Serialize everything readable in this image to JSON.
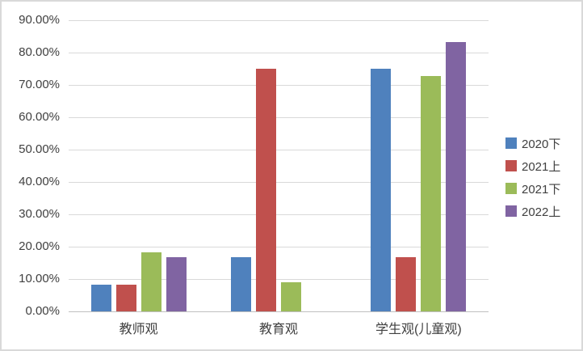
{
  "chart_data": {
    "type": "bar",
    "title": "",
    "xlabel": "",
    "ylabel": "",
    "categories": [
      "教师观",
      "教育观",
      "学生观(儿童观)"
    ],
    "series": [
      {
        "name": "2020下",
        "color": "#4F81BD",
        "values": [
          8.33,
          16.67,
          75.0
        ]
      },
      {
        "name": "2021上",
        "color": "#C0504D",
        "values": [
          8.33,
          75.0,
          16.67
        ]
      },
      {
        "name": "2021下",
        "color": "#9BBB59",
        "values": [
          18.18,
          9.09,
          72.73
        ]
      },
      {
        "name": "2022上",
        "color": "#8064A2",
        "values": [
          16.67,
          0.0,
          83.33
        ]
      }
    ],
    "ylim": [
      0,
      90
    ],
    "ytick_step": 10,
    "y_tick_labels_topdown": [
      "90.00%",
      "80.00%",
      "70.00%",
      "60.00%",
      "50.00%",
      "40.00%",
      "30.00%",
      "20.00%",
      "10.00%",
      "0.00%"
    ],
    "grid": true,
    "legend_position": "right"
  },
  "colors": {
    "gridline": "#D9D9D9",
    "axis_line": "#BFBFBF",
    "text": "#404040",
    "frame_border": "#D9D9D9",
    "background": "#FFFFFF"
  }
}
